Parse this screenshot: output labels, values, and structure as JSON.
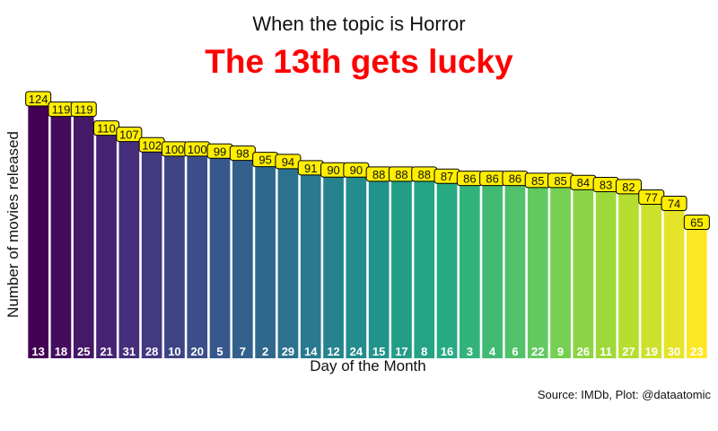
{
  "chart_data": {
    "type": "bar",
    "subtitle": "When the topic is Horror",
    "title": "The 13th gets lucky",
    "xlabel": "Day of the Month",
    "ylabel": "Number of movies released",
    "caption": "Source: IMDb, Plot: @dataatomic",
    "categories": [
      "13",
      "18",
      "25",
      "21",
      "31",
      "28",
      "10",
      "20",
      "5",
      "7",
      "2",
      "29",
      "14",
      "12",
      "24",
      "15",
      "17",
      "8",
      "16",
      "3",
      "4",
      "6",
      "22",
      "9",
      "26",
      "11",
      "27",
      "19",
      "30",
      "23"
    ],
    "values": [
      124,
      119,
      119,
      110,
      107,
      102,
      100,
      100,
      99,
      98,
      95,
      94,
      91,
      90,
      90,
      88,
      88,
      88,
      87,
      86,
      86,
      86,
      85,
      85,
      84,
      83,
      82,
      77,
      74,
      65
    ],
    "ylim": [
      0,
      124
    ],
    "colors": {
      "palette": "viridis",
      "label_fill": "#ffee00",
      "title_color": "#ff0000"
    }
  }
}
